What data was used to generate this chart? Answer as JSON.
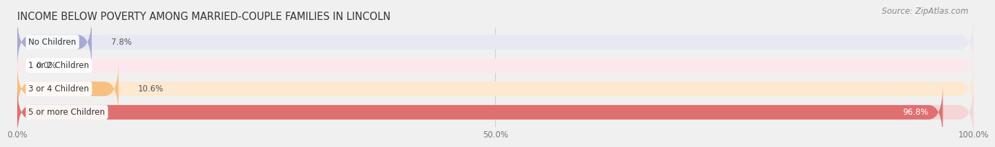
{
  "title": "INCOME BELOW POVERTY AMONG MARRIED-COUPLE FAMILIES IN LINCOLN",
  "source": "Source: ZipAtlas.com",
  "categories": [
    "No Children",
    "1 or 2 Children",
    "3 or 4 Children",
    "5 or more Children"
  ],
  "values": [
    7.8,
    0.0,
    10.6,
    96.8
  ],
  "bar_colors": [
    "#a8aad4",
    "#f09aaa",
    "#f5c080",
    "#e07070"
  ],
  "bar_bg_colors": [
    "#e8e8f2",
    "#fce8ec",
    "#fde8d0",
    "#f5d5d5"
  ],
  "xlim": [
    0,
    100
  ],
  "xtick_labels": [
    "0.0%",
    "50.0%",
    "100.0%"
  ],
  "title_fontsize": 10.5,
  "source_fontsize": 8.5,
  "tick_fontsize": 8.5,
  "bar_label_fontsize": 8.5,
  "category_fontsize": 8.5,
  "background_color": "#f0f0f0",
  "bar_height": 0.62,
  "grid_color": "#d0d0d0"
}
